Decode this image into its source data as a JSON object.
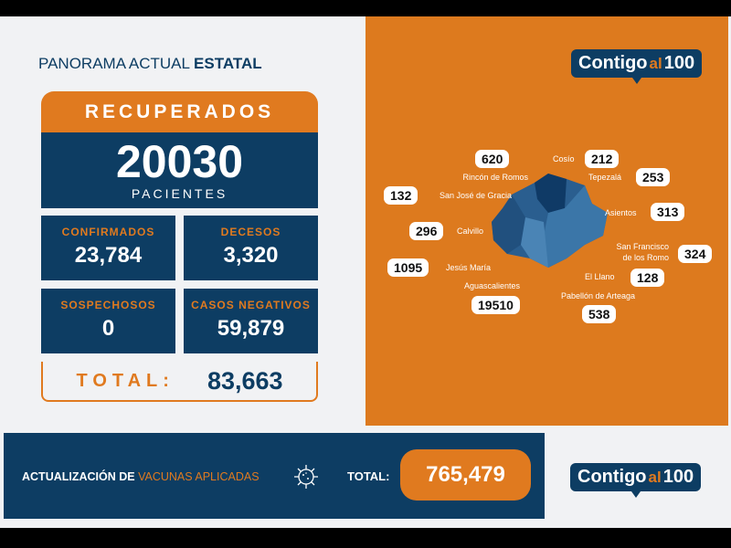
{
  "header": {
    "title_regular": "PANORAMA ACTUAL ",
    "title_bold": "ESTATAL"
  },
  "recuperados": {
    "label": "RECUPERADOS",
    "value": "20030",
    "unit": "PACIENTES"
  },
  "stats": [
    {
      "label": "CONFIRMADOS",
      "value": "23,784"
    },
    {
      "label": "DECESOS",
      "value": "3,320"
    },
    {
      "label": "SOSPECHOSOS",
      "value": "0"
    },
    {
      "label": "CASOS NEGATIVOS",
      "value": "59,879"
    }
  ],
  "total": {
    "label": "TOTAL:",
    "value": "83,663"
  },
  "logo": {
    "a": "Contigo",
    "b": "al",
    "c": "100"
  },
  "municipios": [
    {
      "name": "Rincón de Romos",
      "value": "620"
    },
    {
      "name": "Cosío",
      "value": "212"
    },
    {
      "name": "Tepezalá",
      "value": "253"
    },
    {
      "name": "San José de Gracia",
      "value": "132"
    },
    {
      "name": "Asientos",
      "value": "313"
    },
    {
      "name": "Calvillo",
      "value": "296"
    },
    {
      "name": "San Francisco de los Romo",
      "value": "324"
    },
    {
      "name": "Jesús María",
      "value": "1095"
    },
    {
      "name": "El Llano",
      "value": "128"
    },
    {
      "name": "Aguascalientes",
      "value": "19510"
    },
    {
      "name": "Pabellón de Arteaga",
      "value": "538"
    }
  ],
  "vacunas": {
    "label_bold": "ACTUALIZACIÓN DE ",
    "label_light": "VACUNAS APLICADAS",
    "total_label": "TOTAL:",
    "total_value": "765,479",
    "icon": "virus-icon"
  },
  "colors": {
    "navy": "#0d3d63",
    "orange": "#e07a1f"
  }
}
